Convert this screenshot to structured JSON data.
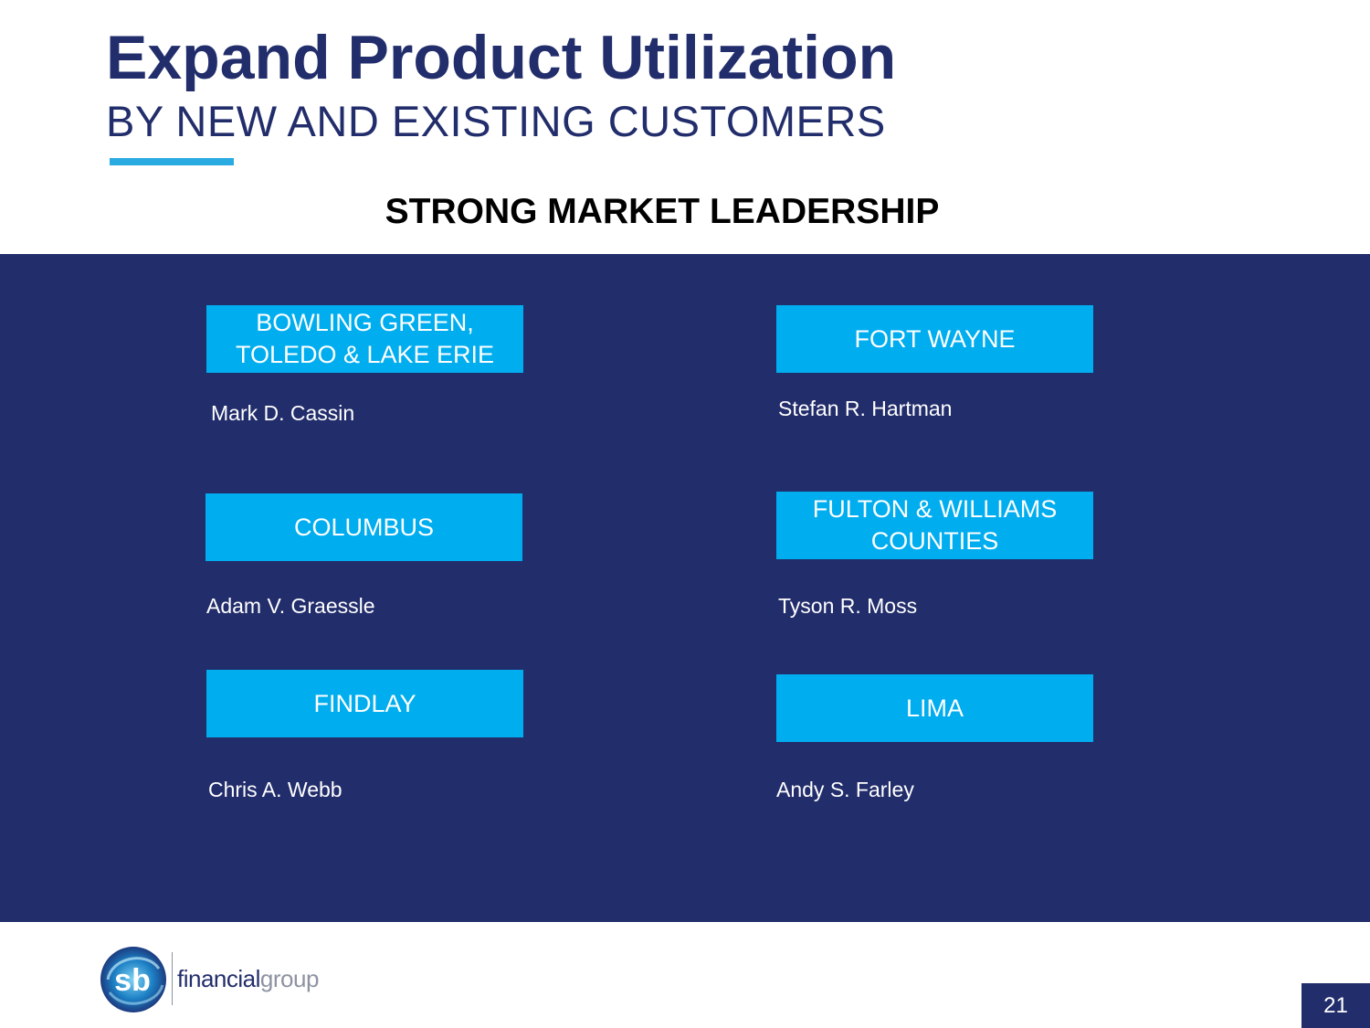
{
  "header": {
    "title": "Expand Product Utilization",
    "subtitle": "BY NEW AND EXISTING CUSTOMERS"
  },
  "section": {
    "heading": "STRONG MARKET LEADERSHIP"
  },
  "markets": [
    {
      "region": "BOWLING GREEN,\nTOLEDO & LAKE ERIE",
      "leader": "Mark D. Cassin"
    },
    {
      "region": "FORT WAYNE",
      "leader": "Stefan R. Hartman"
    },
    {
      "region": "COLUMBUS",
      "leader": "Adam V. Graessle"
    },
    {
      "region": "FULTON & WILLIAMS\nCOUNTIES",
      "leader": "Tyson R. Moss"
    },
    {
      "region": "FINDLAY",
      "leader": "Chris A. Webb"
    },
    {
      "region": "LIMA",
      "leader": "Andy S. Farley"
    }
  ],
  "footer": {
    "logo_mark": "sb",
    "logo_text_bold": "financial",
    "logo_text_light": "group",
    "page_number": "21"
  },
  "colors": {
    "navy": "#222d6b",
    "accent_blue": "#00adef",
    "accent_line": "#29abe2"
  }
}
